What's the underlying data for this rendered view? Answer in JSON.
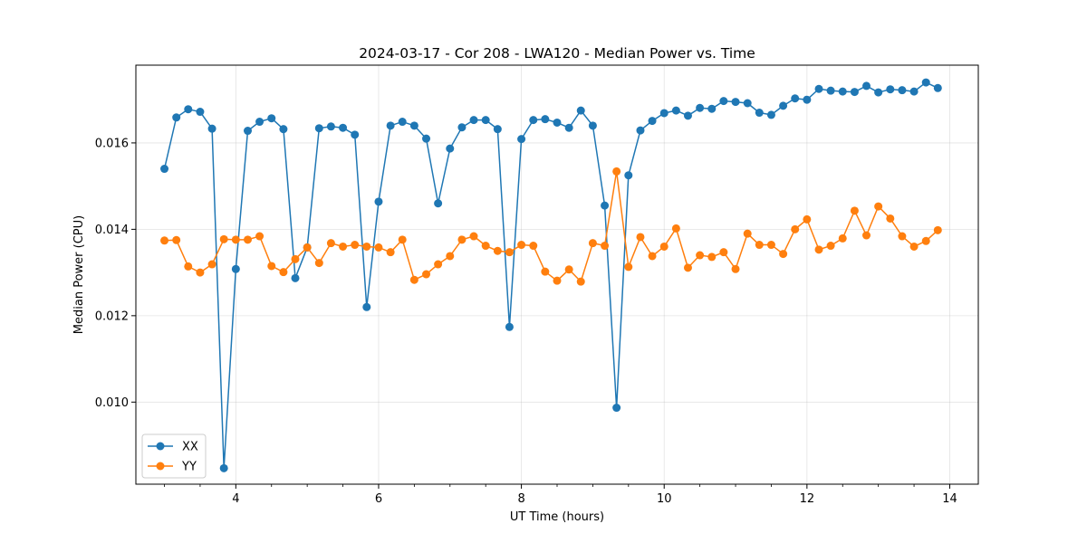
{
  "chart_data": {
    "type": "line",
    "title": "2024-03-17 - Cor 208 - LWA120 - Median Power vs. Time",
    "xlabel": "UT Time (hours)",
    "ylabel": "Median Power (CPU)",
    "xlim": [
      2.6,
      14.4
    ],
    "ylim": [
      0.0081,
      0.0178
    ],
    "xticks": [
      4,
      6,
      8,
      10,
      12,
      14
    ],
    "xtick_labels": [
      "4",
      "6",
      "8",
      "10",
      "12",
      "14"
    ],
    "yticks": [
      0.01,
      0.012,
      0.014,
      0.016
    ],
    "ytick_labels": [
      "0.010",
      "0.012",
      "0.014",
      "0.016"
    ],
    "grid": true,
    "legend_position": "lower-left",
    "x": [
      3.0,
      3.167,
      3.333,
      3.5,
      3.667,
      3.833,
      4.0,
      4.167,
      4.333,
      4.5,
      4.667,
      4.833,
      5.0,
      5.167,
      5.333,
      5.5,
      5.667,
      5.833,
      6.0,
      6.167,
      6.333,
      6.5,
      6.667,
      6.833,
      7.0,
      7.167,
      7.333,
      7.5,
      7.667,
      7.833,
      8.0,
      8.167,
      8.333,
      8.5,
      8.667,
      8.833,
      9.0,
      9.167,
      9.333,
      9.5,
      9.667,
      9.833,
      10.0,
      10.167,
      10.333,
      10.5,
      10.667,
      10.833,
      11.0,
      11.167,
      11.333,
      11.5,
      11.667,
      11.833,
      12.0,
      12.167,
      12.333,
      12.5,
      12.667,
      12.833,
      13.0,
      13.167,
      13.333,
      13.5,
      13.667,
      13.833
    ],
    "series": [
      {
        "name": "XX",
        "color": "#1f77b4",
        "values": [
          0.0154,
          0.01659,
          0.01678,
          0.01672,
          0.01633,
          0.00847,
          0.01308,
          0.01628,
          0.01649,
          0.01657,
          0.01632,
          0.01287,
          0.01358,
          0.01634,
          0.01638,
          0.01635,
          0.01619,
          0.0122,
          0.01464,
          0.0164,
          0.01649,
          0.0164,
          0.0161,
          0.0146,
          0.01587,
          0.01636,
          0.01653,
          0.01653,
          0.01632,
          0.01174,
          0.01609,
          0.01653,
          0.01655,
          0.01647,
          0.01635,
          0.01675,
          0.0164,
          0.01455,
          0.00987,
          0.01525,
          0.01629,
          0.01651,
          0.01669,
          0.01675,
          0.01663,
          0.01681,
          0.01679,
          0.01697,
          0.01695,
          0.01692,
          0.0167,
          0.01665,
          0.01686,
          0.01703,
          0.017,
          0.01725,
          0.01721,
          0.01719,
          0.01718,
          0.01732,
          0.01717,
          0.01724,
          0.01722,
          0.01719,
          0.0174,
          0.01727
        ]
      },
      {
        "name": "YY",
        "color": "#ff7f0e",
        "values": [
          0.01374,
          0.01375,
          0.01314,
          0.013,
          0.01319,
          0.01377,
          0.01376,
          0.01376,
          0.01384,
          0.01315,
          0.01301,
          0.01331,
          0.01358,
          0.01322,
          0.01368,
          0.0136,
          0.01364,
          0.0136,
          0.01358,
          0.01347,
          0.01376,
          0.01283,
          0.01296,
          0.01319,
          0.01338,
          0.01376,
          0.01384,
          0.01362,
          0.0135,
          0.01347,
          0.01364,
          0.01362,
          0.01302,
          0.01281,
          0.01307,
          0.01279,
          0.01368,
          0.01362,
          0.01534,
          0.01313,
          0.01382,
          0.01338,
          0.0136,
          0.01402,
          0.01311,
          0.0134,
          0.01336,
          0.01347,
          0.01308,
          0.0139,
          0.01364,
          0.01364,
          0.01343,
          0.014,
          0.01423,
          0.01353,
          0.01362,
          0.01379,
          0.01443,
          0.01386,
          0.01453,
          0.01425,
          0.01384,
          0.0136,
          0.01373,
          0.01398
        ]
      }
    ]
  }
}
